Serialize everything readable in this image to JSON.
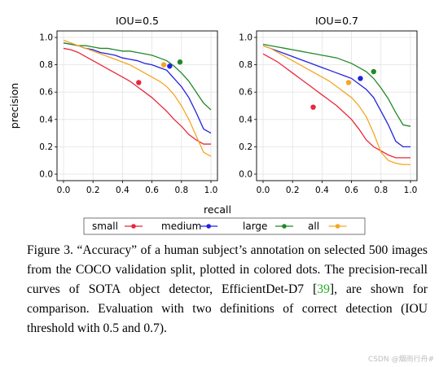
{
  "chart_data": [
    {
      "type": "line",
      "title": "IOU=0.5",
      "xlabel": "recall",
      "ylabel": "precision",
      "xlim": [
        0,
        1
      ],
      "ylim": [
        0,
        1
      ],
      "xticks": [
        "0.0",
        "0.2",
        "0.4",
        "0.6",
        "0.8",
        "1.0"
      ],
      "yticks": [
        "0.0",
        "0.2",
        "0.4",
        "0.6",
        "0.8",
        "1.0"
      ],
      "grid": true,
      "series": [
        {
          "name": "small",
          "color": "#e8283c",
          "x": [
            0,
            0.05,
            0.1,
            0.15,
            0.2,
            0.25,
            0.3,
            0.35,
            0.4,
            0.45,
            0.5,
            0.55,
            0.6,
            0.65,
            0.7,
            0.75,
            0.8,
            0.85,
            0.9,
            0.95,
            1.0
          ],
          "y": [
            0.92,
            0.91,
            0.89,
            0.86,
            0.83,
            0.8,
            0.77,
            0.74,
            0.71,
            0.68,
            0.64,
            0.6,
            0.56,
            0.51,
            0.46,
            0.4,
            0.35,
            0.29,
            0.25,
            0.22,
            0.22
          ],
          "human": [
            0.51,
            0.67
          ]
        },
        {
          "name": "medium",
          "color": "#2222dd",
          "x": [
            0,
            0.05,
            0.1,
            0.15,
            0.2,
            0.25,
            0.3,
            0.35,
            0.4,
            0.45,
            0.5,
            0.55,
            0.6,
            0.65,
            0.7,
            0.75,
            0.8,
            0.85,
            0.9,
            0.95,
            1.0
          ],
          "y": [
            0.96,
            0.95,
            0.94,
            0.92,
            0.91,
            0.89,
            0.88,
            0.87,
            0.85,
            0.84,
            0.83,
            0.81,
            0.8,
            0.78,
            0.76,
            0.7,
            0.64,
            0.56,
            0.45,
            0.33,
            0.3
          ],
          "human": [
            0.72,
            0.79
          ]
        },
        {
          "name": "large",
          "color": "#22882a",
          "x": [
            0,
            0.05,
            0.1,
            0.15,
            0.2,
            0.25,
            0.3,
            0.35,
            0.4,
            0.45,
            0.5,
            0.55,
            0.6,
            0.65,
            0.7,
            0.75,
            0.8,
            0.85,
            0.9,
            0.95,
            1.0
          ],
          "y": [
            0.96,
            0.95,
            0.94,
            0.94,
            0.93,
            0.92,
            0.92,
            0.91,
            0.9,
            0.9,
            0.89,
            0.88,
            0.87,
            0.85,
            0.83,
            0.79,
            0.74,
            0.68,
            0.6,
            0.52,
            0.47
          ],
          "human": [
            0.79,
            0.82
          ]
        },
        {
          "name": "all",
          "color": "#f5a623",
          "x": [
            0,
            0.05,
            0.1,
            0.15,
            0.2,
            0.25,
            0.3,
            0.35,
            0.4,
            0.45,
            0.5,
            0.55,
            0.6,
            0.65,
            0.7,
            0.75,
            0.8,
            0.85,
            0.9,
            0.95,
            1.0
          ],
          "y": [
            0.98,
            0.96,
            0.94,
            0.92,
            0.9,
            0.88,
            0.86,
            0.84,
            0.82,
            0.8,
            0.77,
            0.74,
            0.71,
            0.68,
            0.64,
            0.58,
            0.5,
            0.4,
            0.28,
            0.16,
            0.13
          ],
          "human": [
            0.68,
            0.8
          ]
        }
      ]
    },
    {
      "type": "line",
      "title": "IOU=0.7",
      "xlabel": "recall",
      "ylabel": "",
      "xlim": [
        0,
        1
      ],
      "ylim": [
        0,
        1
      ],
      "xticks": [
        "0.0",
        "0.2",
        "0.4",
        "0.6",
        "0.8",
        "1.0"
      ],
      "yticks": [
        "0.0",
        "0.2",
        "0.4",
        "0.6",
        "0.8",
        "1.0"
      ],
      "grid": true,
      "series": [
        {
          "name": "small",
          "color": "#e8283c",
          "x": [
            0,
            0.05,
            0.1,
            0.15,
            0.2,
            0.25,
            0.3,
            0.35,
            0.4,
            0.45,
            0.5,
            0.55,
            0.6,
            0.65,
            0.7,
            0.75,
            0.8,
            0.85,
            0.9,
            0.95,
            1.0
          ],
          "y": [
            0.88,
            0.85,
            0.82,
            0.78,
            0.74,
            0.7,
            0.66,
            0.62,
            0.58,
            0.54,
            0.5,
            0.45,
            0.4,
            0.33,
            0.25,
            0.2,
            0.17,
            0.14,
            0.12,
            0.12,
            0.12
          ],
          "human": [
            0.34,
            0.49
          ]
        },
        {
          "name": "medium",
          "color": "#2222dd",
          "x": [
            0,
            0.05,
            0.1,
            0.15,
            0.2,
            0.25,
            0.3,
            0.35,
            0.4,
            0.45,
            0.5,
            0.55,
            0.6,
            0.65,
            0.7,
            0.75,
            0.8,
            0.85,
            0.9,
            0.95,
            1.0
          ],
          "y": [
            0.94,
            0.92,
            0.9,
            0.88,
            0.86,
            0.84,
            0.82,
            0.8,
            0.78,
            0.76,
            0.74,
            0.72,
            0.7,
            0.66,
            0.62,
            0.56,
            0.46,
            0.36,
            0.24,
            0.2,
            0.2
          ],
          "human": [
            0.66,
            0.7
          ]
        },
        {
          "name": "large",
          "color": "#22882a",
          "x": [
            0,
            0.05,
            0.1,
            0.15,
            0.2,
            0.25,
            0.3,
            0.35,
            0.4,
            0.45,
            0.5,
            0.55,
            0.6,
            0.65,
            0.7,
            0.75,
            0.8,
            0.85,
            0.9,
            0.95,
            1.0
          ],
          "y": [
            0.95,
            0.94,
            0.93,
            0.92,
            0.91,
            0.9,
            0.89,
            0.88,
            0.87,
            0.86,
            0.85,
            0.83,
            0.81,
            0.78,
            0.75,
            0.7,
            0.63,
            0.55,
            0.45,
            0.36,
            0.35
          ],
          "human": [
            0.75,
            0.75
          ]
        },
        {
          "name": "all",
          "color": "#f5a623",
          "x": [
            0,
            0.05,
            0.1,
            0.15,
            0.2,
            0.25,
            0.3,
            0.35,
            0.4,
            0.45,
            0.5,
            0.55,
            0.6,
            0.65,
            0.7,
            0.75,
            0.8,
            0.85,
            0.9,
            0.95,
            1.0
          ],
          "y": [
            0.94,
            0.92,
            0.89,
            0.86,
            0.83,
            0.8,
            0.77,
            0.74,
            0.71,
            0.68,
            0.64,
            0.6,
            0.56,
            0.5,
            0.42,
            0.3,
            0.16,
            0.1,
            0.08,
            0.07,
            0.07
          ],
          "human": [
            0.58,
            0.67
          ]
        }
      ]
    }
  ],
  "legend": {
    "placement": "bottom-center",
    "items": [
      "small",
      "medium",
      "large",
      "all"
    ]
  },
  "caption": {
    "figure_label": "Figure 3.",
    "text_before_ref": "“Accuracy” of a human subject’s annotation on selected 500 images from the COCO validation split, plotted in colored dots. The precision-recall curves of SOTA object detector, EfficientDet-D7 [",
    "ref": "39",
    "text_after_ref": "], are shown for comparison. Evaluation with two definitions of correct detection (IOU threshold with 0.5 and 0.7)."
  },
  "watermark": "CSDN @烟雨行舟#"
}
